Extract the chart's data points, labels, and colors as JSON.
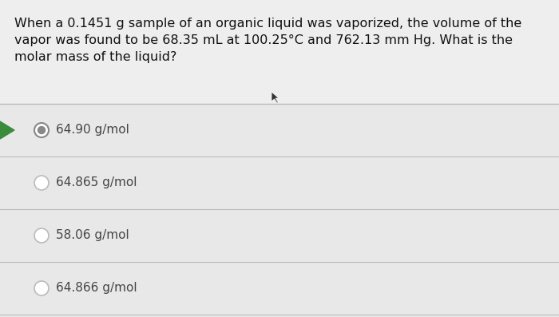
{
  "question_lines": [
    "When a 0.1451 g sample of an organic liquid was vaporized, the volume of the",
    "vapor was found to be 68.35 mL at 100.25°C and 762.13 mm Hg. What is the",
    "molar mass of the liquid?"
  ],
  "options": [
    "64.90 g/mol",
    "64.865 g/mol",
    "58.06 g/mol",
    "64.866 g/mol"
  ],
  "correct_index": 0,
  "bg_color": "#d8d8d8",
  "content_bg": "#e8e8e8",
  "divider_color": "#bbbbbb",
  "text_color": "#111111",
  "option_text_color": "#444444",
  "selected_radio_outer": "#888888",
  "selected_radio_inner": "#888888",
  "unselected_radio_outer": "#bbbbbb",
  "arrow_color": "#3a8c3a",
  "question_fontsize": 11.5,
  "option_fontsize": 11.0
}
